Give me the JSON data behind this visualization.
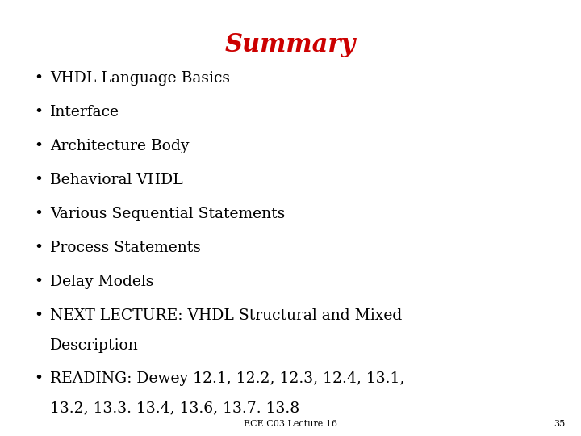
{
  "title": "Summary",
  "title_color": "#cc0000",
  "title_fontsize": 22,
  "bullet_items": [
    "VHDL Language Basics",
    "Interface",
    "Architecture Body",
    "Behavioral VHDL",
    "Various Sequential Statements",
    "Process Statements",
    "Delay Models",
    "NEXT LECTURE: VHDL Structural and Mixed\nDescription",
    "READING: Dewey 12.1, 12.2, 12.3, 12.4, 13.1,\n13.2, 13.3. 13.4, 13.6, 13.7. 13.8"
  ],
  "bullet_fontsize": 13.5,
  "bullet_color": "#000000",
  "bullet_symbol": "•",
  "footer_text": "ECE C03 Lecture 16",
  "footer_number": "35",
  "footer_fontsize": 8,
  "background_color": "#ffffff"
}
